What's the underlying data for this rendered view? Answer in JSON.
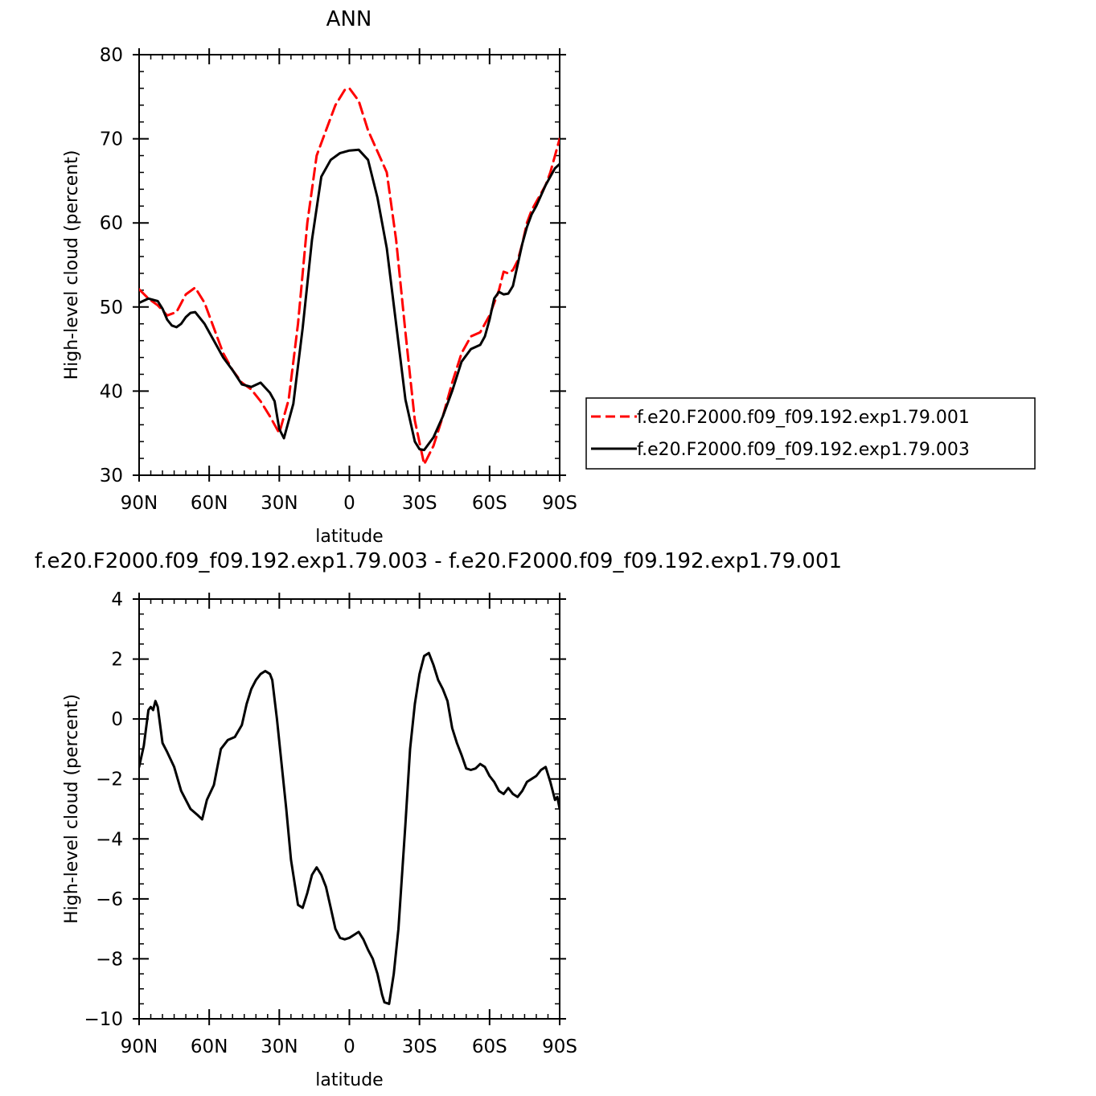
{
  "chart_data": [
    {
      "type": "line",
      "title": "ANN",
      "xlabel": "latitude",
      "ylabel": "High-level cloud (percent)",
      "xlim": [
        90,
        -90
      ],
      "ylim": [
        30,
        80
      ],
      "x_ticks": [
        {
          "value": 90,
          "label": "90N"
        },
        {
          "value": 60,
          "label": "60N"
        },
        {
          "value": 30,
          "label": "30N"
        },
        {
          "value": 0,
          "label": "0"
        },
        {
          "value": -30,
          "label": "30S"
        },
        {
          "value": -60,
          "label": "60S"
        },
        {
          "value": -90,
          "label": "90S"
        }
      ],
      "y_ticks": [
        {
          "value": 30,
          "label": "30"
        },
        {
          "value": 40,
          "label": "40"
        },
        {
          "value": 50,
          "label": "50"
        },
        {
          "value": 60,
          "label": "60"
        },
        {
          "value": 70,
          "label": "70"
        },
        {
          "value": 80,
          "label": "80"
        }
      ],
      "legend_position": "right",
      "series": [
        {
          "name": "f.e20.F2000.f09_f09.192.exp1.79.001",
          "color": "#ff0000",
          "dash": "dashed",
          "x": [
            90,
            86,
            82,
            78,
            74,
            70,
            66,
            62,
            58,
            54,
            50,
            46,
            42,
            38,
            34,
            30,
            26,
            22,
            18,
            14,
            10,
            6,
            2,
            0,
            -4,
            -8,
            -12,
            -16,
            -20,
            -24,
            -28,
            -32,
            -36,
            -40,
            -44,
            -48,
            -52,
            -56,
            -60,
            -64,
            -66,
            -68,
            -70,
            -72,
            -74,
            -76,
            -78,
            -80,
            -82,
            -84,
            -86,
            -88,
            -90
          ],
          "y": [
            52.1,
            51.0,
            50.2,
            49.0,
            49.4,
            51.5,
            52.3,
            50.5,
            47.5,
            44.5,
            42.5,
            41.0,
            40.2,
            38.8,
            37.0,
            35.0,
            39.0,
            48.0,
            60.0,
            68.0,
            71.0,
            74.0,
            75.8,
            76.0,
            74.5,
            71.0,
            68.5,
            66.0,
            58.0,
            47.0,
            36.5,
            31.3,
            33.5,
            37.0,
            41.0,
            44.5,
            46.5,
            47.0,
            49.0,
            52.0,
            54.2,
            54.0,
            54.4,
            55.5,
            57.5,
            60.0,
            61.5,
            62.5,
            63.5,
            64.5,
            66.0,
            68.0,
            70.0
          ]
        },
        {
          "name": "f.e20.F2000.f09_f09.192.exp1.79.003",
          "color": "#000000",
          "dash": "solid",
          "x": [
            90,
            86,
            82,
            80,
            78,
            76,
            74,
            72,
            70,
            68,
            66,
            62,
            58,
            54,
            50,
            46,
            42,
            38,
            34,
            32,
            30,
            28,
            24,
            20,
            16,
            12,
            8,
            4,
            0,
            -4,
            -8,
            -12,
            -16,
            -20,
            -24,
            -28,
            -30,
            -32,
            -36,
            -40,
            -44,
            -48,
            -52,
            -56,
            -58,
            -60,
            -62,
            -64,
            -66,
            -68,
            -70,
            -72,
            -74,
            -76,
            -78,
            -80,
            -84,
            -88,
            -90
          ],
          "y": [
            50.5,
            51.0,
            50.7,
            49.8,
            48.5,
            47.8,
            47.6,
            48.0,
            48.8,
            49.3,
            49.4,
            48.0,
            46.0,
            44.0,
            42.5,
            40.8,
            40.5,
            41.0,
            39.8,
            38.8,
            35.5,
            34.4,
            38.5,
            47.5,
            58.0,
            65.5,
            67.5,
            68.3,
            68.6,
            68.7,
            67.5,
            63.0,
            57.0,
            48.0,
            39.0,
            34.0,
            33.1,
            33.0,
            34.5,
            37.0,
            40.0,
            43.5,
            45.0,
            45.5,
            46.5,
            48.5,
            51.0,
            51.8,
            51.5,
            51.6,
            52.5,
            55.0,
            57.5,
            59.5,
            61.0,
            62.0,
            64.5,
            66.5,
            67.0
          ]
        }
      ]
    },
    {
      "type": "line",
      "title": "f.e20.F2000.f09_f09.192.exp1.79.003 - f.e20.F2000.f09_f09.192.exp1.79.001",
      "xlabel": "latitude",
      "ylabel": "High-level cloud (percent)",
      "xlim": [
        90,
        -90
      ],
      "ylim": [
        -10,
        4
      ],
      "x_ticks": [
        {
          "value": 90,
          "label": "90N"
        },
        {
          "value": 60,
          "label": "60N"
        },
        {
          "value": 30,
          "label": "30N"
        },
        {
          "value": 0,
          "label": "0"
        },
        {
          "value": -30,
          "label": "30S"
        },
        {
          "value": -60,
          "label": "60S"
        },
        {
          "value": -90,
          "label": "90S"
        }
      ],
      "y_ticks": [
        {
          "value": -10,
          "label": "−10"
        },
        {
          "value": -8,
          "label": "−8"
        },
        {
          "value": -6,
          "label": "−6"
        },
        {
          "value": -4,
          "label": "−4"
        },
        {
          "value": -2,
          "label": "−2"
        },
        {
          "value": 0,
          "label": "0"
        },
        {
          "value": 2,
          "label": "2"
        },
        {
          "value": 4,
          "label": "4"
        }
      ],
      "series": [
        {
          "color": "#000000",
          "dash": "solid",
          "x": [
            90,
            88,
            86,
            85,
            84,
            83,
            82,
            80,
            78,
            75,
            72,
            68,
            65,
            63,
            61,
            58,
            55,
            52,
            49,
            46,
            44,
            42,
            40,
            38,
            36,
            34,
            33,
            31,
            29,
            27,
            25,
            22,
            20,
            18,
            16,
            14,
            12,
            10,
            8,
            6,
            4,
            2,
            0,
            -2,
            -4,
            -6,
            -8,
            -10,
            -12,
            -14,
            -15,
            -17,
            -19,
            -21,
            -24,
            -26,
            -28,
            -30,
            -32,
            -34,
            -36,
            -38,
            -40,
            -42,
            -44,
            -46,
            -48,
            -50,
            -52,
            -54,
            -56,
            -58,
            -60,
            -62,
            -64,
            -66,
            -68,
            -70,
            -72,
            -74,
            -76,
            -78,
            -80,
            -82,
            -84,
            -86,
            -88,
            -89,
            -90
          ],
          "y": [
            -1.6,
            -0.9,
            0.3,
            0.4,
            0.3,
            0.6,
            0.4,
            -0.8,
            -1.1,
            -1.6,
            -2.4,
            -3.0,
            -3.2,
            -3.35,
            -2.7,
            -2.2,
            -1.0,
            -0.7,
            -0.6,
            -0.2,
            0.5,
            1.0,
            1.3,
            1.5,
            1.6,
            1.5,
            1.3,
            0.0,
            -1.5,
            -3.0,
            -4.7,
            -6.2,
            -6.3,
            -5.8,
            -5.2,
            -4.95,
            -5.2,
            -5.6,
            -6.3,
            -7.0,
            -7.3,
            -7.35,
            -7.3,
            -7.2,
            -7.1,
            -7.35,
            -7.7,
            -8.0,
            -8.5,
            -9.2,
            -9.45,
            -9.5,
            -8.5,
            -7.0,
            -3.5,
            -1.0,
            0.5,
            1.5,
            2.1,
            2.2,
            1.8,
            1.3,
            1.0,
            0.6,
            -0.3,
            -0.8,
            -1.2,
            -1.65,
            -1.7,
            -1.65,
            -1.5,
            -1.6,
            -1.9,
            -2.1,
            -2.4,
            -2.5,
            -2.3,
            -2.5,
            -2.6,
            -2.4,
            -2.1,
            -2.0,
            -1.9,
            -1.7,
            -1.6,
            -2.1,
            -2.7,
            -2.6,
            -3.0
          ]
        }
      ]
    }
  ]
}
